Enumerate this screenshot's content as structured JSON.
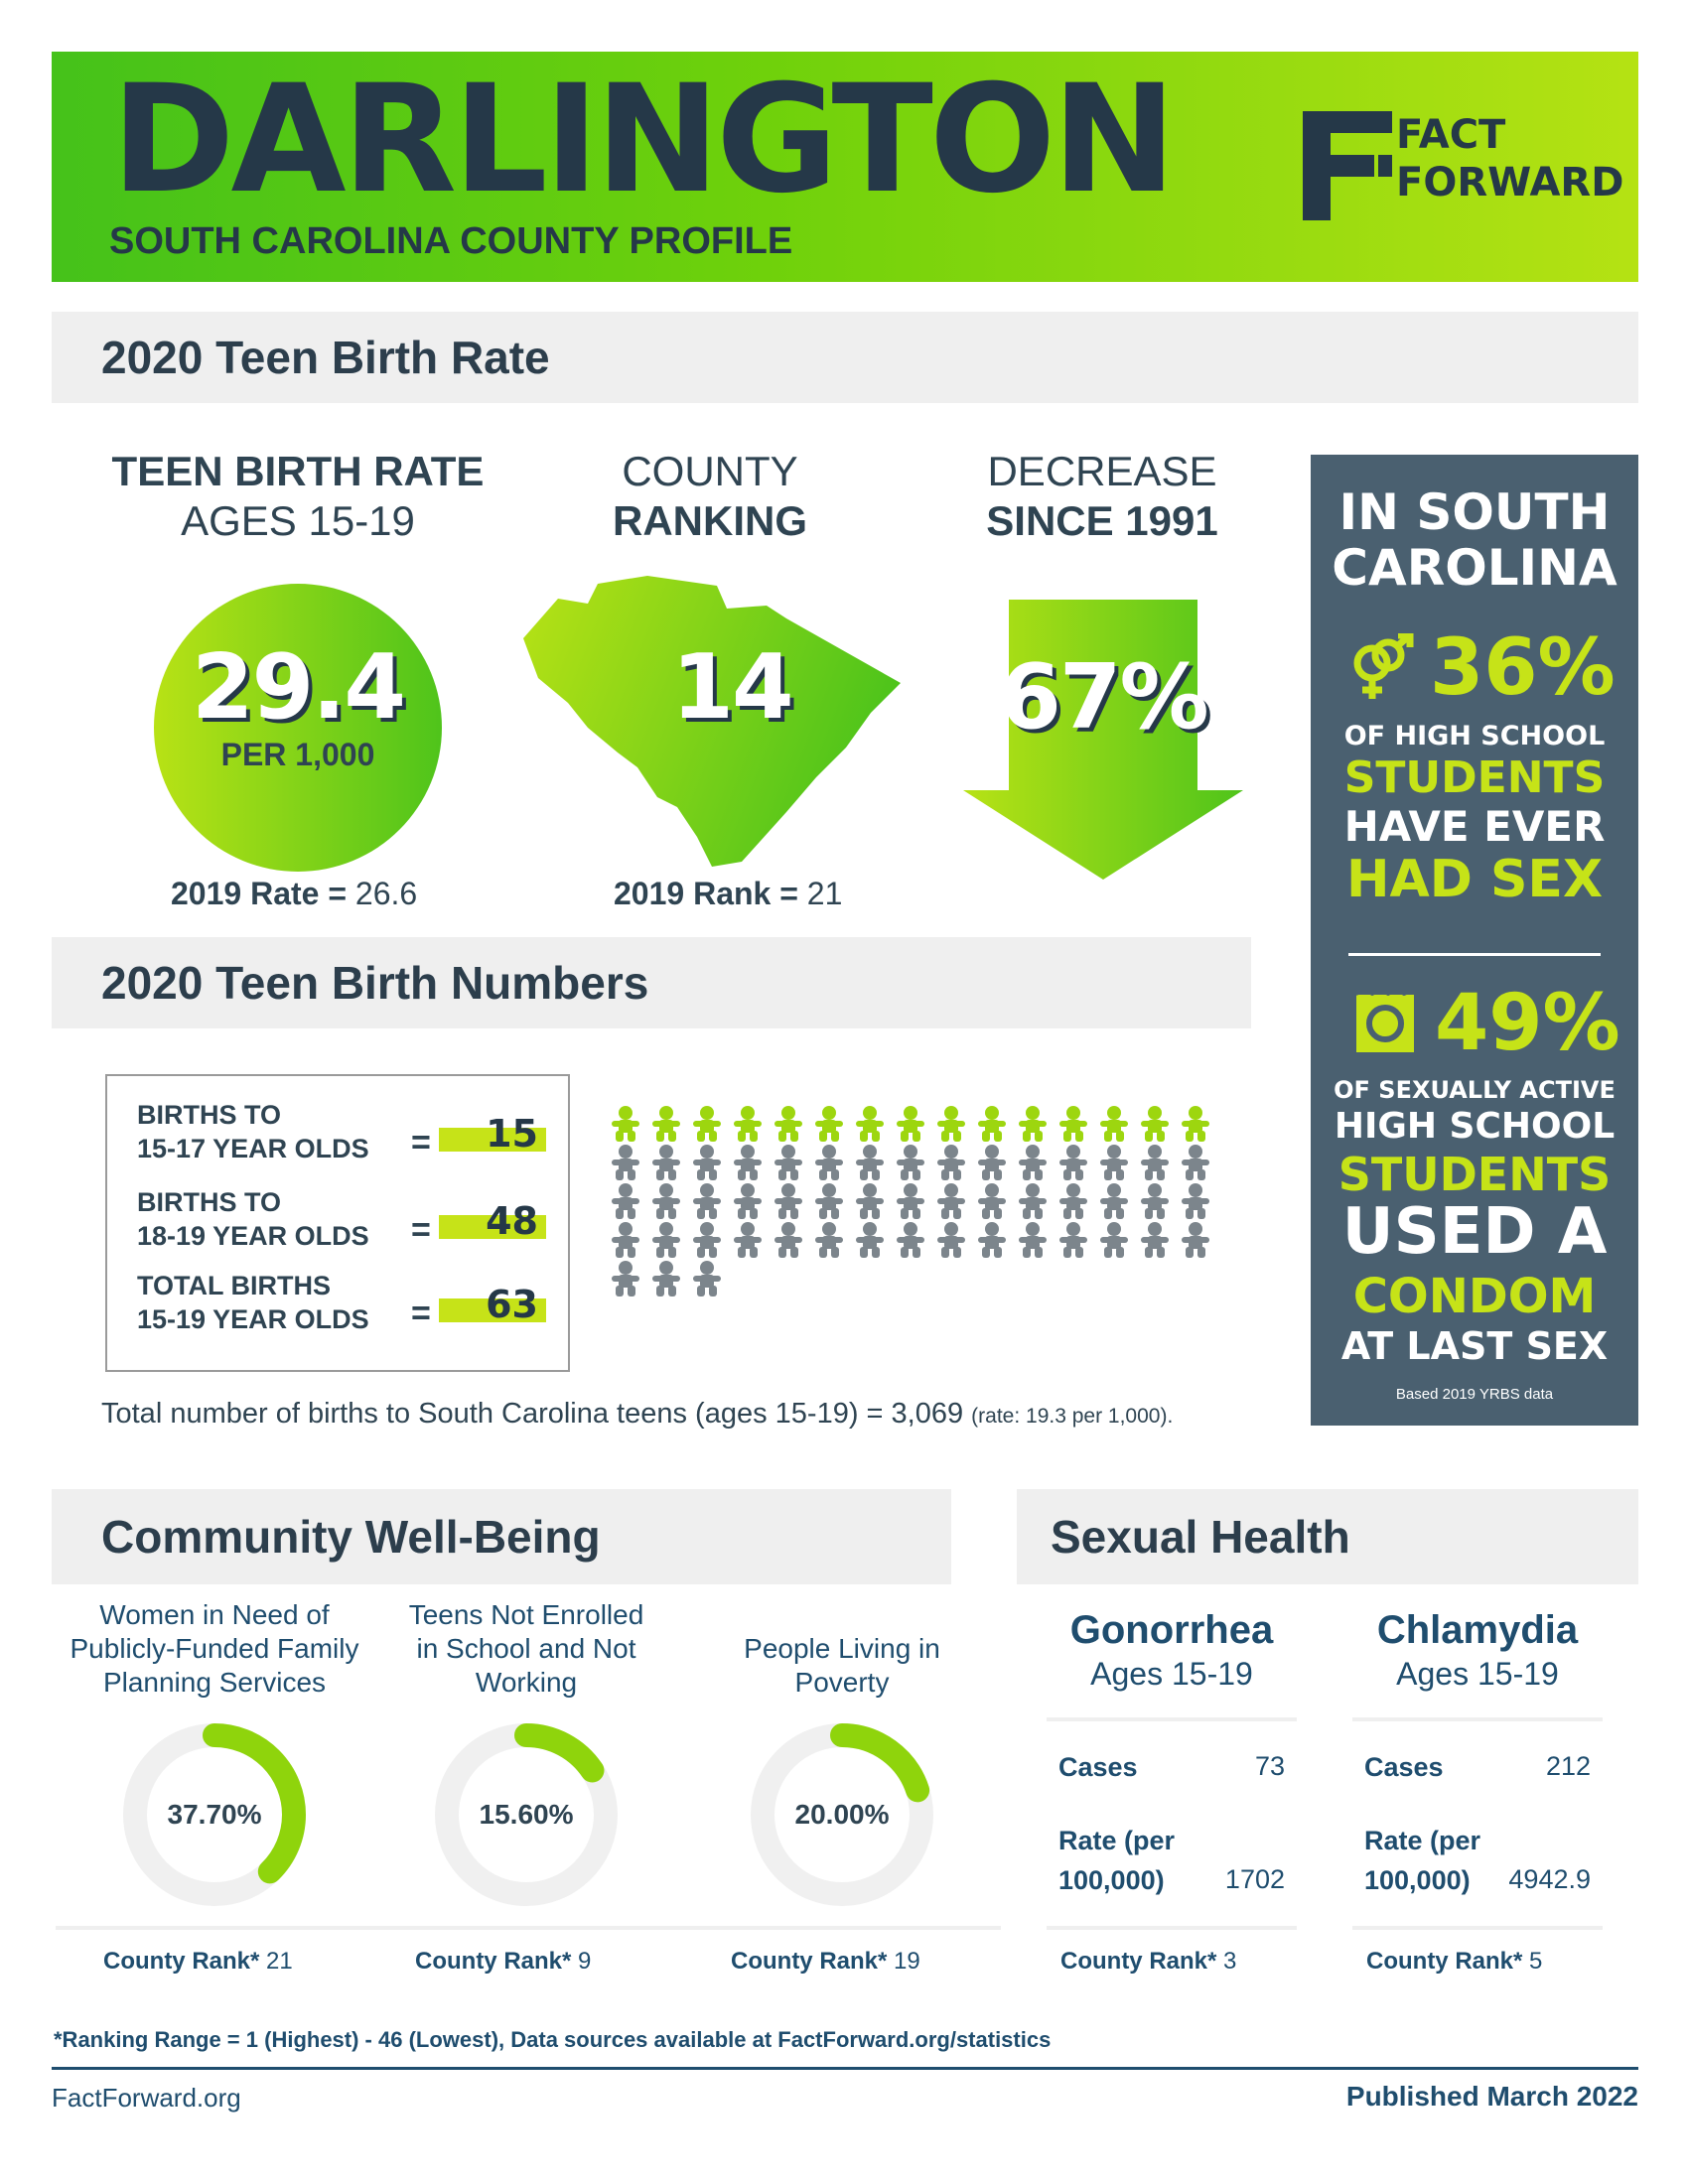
{
  "header": {
    "county": "DARLINGTON",
    "subtitle": "SOUTH CAROLINA COUNTY PROFILE",
    "logo_line1": "FACT",
    "logo_line2": "FORWARD"
  },
  "rate_section": {
    "title": "2020 Teen Birth Rate",
    "rate": {
      "label_line1": "TEEN BIRTH RATE",
      "label_line2": "AGES 15-19",
      "value": "29.4",
      "unit": "PER 1,000",
      "prior_label": "2019 Rate =",
      "prior_value": "26.6"
    },
    "ranking": {
      "label_line1": "COUNTY",
      "label_line2": "RANKING",
      "value": "14",
      "prior_label": "2019 Rank =",
      "prior_value": "21"
    },
    "decrease": {
      "label_line1": "DECREASE",
      "label_line2": "SINCE 1991",
      "value": "67%"
    }
  },
  "sidebar": {
    "heading_line1": "IN SOUTH",
    "heading_line2": "CAROLINA",
    "stat1_value": "36%",
    "stat1_line1": "OF HIGH SCHOOL",
    "stat1_line2": "STUDENTS",
    "stat1_line3": "HAVE EVER",
    "stat1_line4": "HAD SEX",
    "stat2_value": "49%",
    "stat2_line1": "OF SEXUALLY ACTIVE",
    "stat2_line2": "HIGH SCHOOL",
    "stat2_line3": "STUDENTS",
    "stat2_line4": "USED A",
    "stat2_line5": "CONDOM",
    "stat2_line6": "AT LAST SEX",
    "source": "Based 2019 YRBS data",
    "icon1": "gender-symbols-icon",
    "icon2": "condom-icon"
  },
  "numbers_section": {
    "title": "2020 Teen Birth Numbers",
    "rows": [
      {
        "label_line1": "BIRTHS TO",
        "label_line2": "15-17 YEAR OLDS",
        "eq": "=",
        "value": "15"
      },
      {
        "label_line1": "BIRTHS TO",
        "label_line2": "18-19 YEAR OLDS",
        "eq": "=",
        "value": "48"
      },
      {
        "label_line1": "TOTAL BIRTHS",
        "label_line2": "15-19 YEAR OLDS",
        "eq": "=",
        "value": "63"
      }
    ],
    "figures": {
      "green": 15,
      "grey": 48
    },
    "state_note": "Total number of births to South Carolina teens (ages 15-19) = 3,069",
    "state_rate": "(rate: 19.3 per 1,000)."
  },
  "community": {
    "title": "Community Well-Being",
    "items": [
      {
        "title_lines": [
          "Women in Need of",
          "Publicly-Funded Family",
          "Planning Services"
        ],
        "value": "37.70%",
        "pct": 37.7,
        "rank_label": "County Rank*",
        "rank": "21"
      },
      {
        "title_lines": [
          "Teens Not Enrolled",
          "in School and Not",
          "Working"
        ],
        "value": "15.60%",
        "pct": 15.6,
        "rank_label": "County Rank*",
        "rank": "9"
      },
      {
        "title_lines": [
          "People Living in",
          "Poverty"
        ],
        "value": "20.00%",
        "pct": 20.0,
        "rank_label": "County Rank*",
        "rank": "19"
      }
    ]
  },
  "sexual_health": {
    "title": "Sexual Health",
    "items": [
      {
        "name": "Gonorrhea",
        "ages": "Ages 15-19",
        "cases_label": "Cases",
        "cases": "73",
        "rate_label_line1": "Rate (per",
        "rate_label_line2": "100,000)",
        "rate": "1702",
        "rank_label": "County Rank*",
        "rank": "3"
      },
      {
        "name": "Chlamydia",
        "ages": "Ages 15-19",
        "cases_label": "Cases",
        "cases": "212",
        "rate_label_line1": "Rate (per",
        "rate_label_line2": "100,000)",
        "rate": "4942.9",
        "rank_label": "County Rank*",
        "rank": "5"
      }
    ]
  },
  "footer": {
    "note": "*Ranking Range = 1 (Highest) - 46 (Lowest), Data sources available at FactForward.org/statistics",
    "site": "FactForward.org",
    "published": "Published March 2022"
  },
  "colors": {
    "green": "#8fd40c",
    "navy": "#253848",
    "slate": "#4a6070",
    "grey_figure": "#7c858c",
    "green_figure": "#9dd60f"
  }
}
